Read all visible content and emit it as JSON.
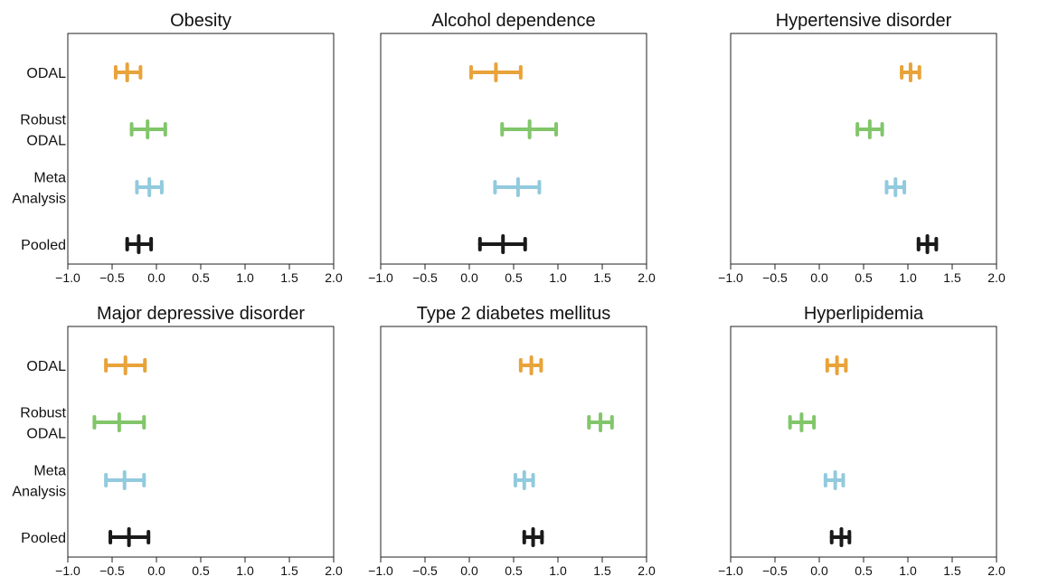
{
  "chart_data": {
    "type": "forest",
    "method_labels": [
      {
        "lines": [
          "ODAL"
        ]
      },
      {
        "lines": [
          "Robust",
          "ODAL"
        ]
      },
      {
        "lines": [
          "Meta",
          "Analysis"
        ]
      },
      {
        "lines": [
          "Pooled"
        ]
      }
    ],
    "method_colors": [
      "#E8A33A",
      "#82C66A",
      "#92CADE",
      "#1A1A1A"
    ],
    "xlim": [
      -1.0,
      2.0
    ],
    "xticks": [
      -1.0,
      -0.5,
      0.0,
      0.5,
      1.0,
      1.5,
      2.0
    ],
    "xtick_labels": [
      "−1.0",
      "−0.5",
      "0.0",
      "0.5",
      "1.0",
      "1.5",
      "2.0"
    ],
    "grid": false,
    "panels": [
      {
        "title": "Obesity",
        "estimates": [
          {
            "method": "ODAL",
            "est": -0.33,
            "lo": -0.46,
            "hi": -0.18
          },
          {
            "method": "Robust ODAL",
            "est": -0.1,
            "lo": -0.28,
            "hi": 0.1
          },
          {
            "method": "Meta Analysis",
            "est": -0.08,
            "lo": -0.22,
            "hi": 0.06
          },
          {
            "method": "Pooled",
            "est": -0.2,
            "lo": -0.33,
            "hi": -0.06
          }
        ]
      },
      {
        "title": "Alcohol dependence",
        "estimates": [
          {
            "method": "ODAL",
            "est": 0.3,
            "lo": 0.02,
            "hi": 0.58
          },
          {
            "method": "Robust ODAL",
            "est": 0.68,
            "lo": 0.37,
            "hi": 0.98
          },
          {
            "method": "Meta Analysis",
            "est": 0.55,
            "lo": 0.29,
            "hi": 0.79
          },
          {
            "method": "Pooled",
            "est": 0.38,
            "lo": 0.12,
            "hi": 0.63
          }
        ]
      },
      {
        "title": "Hypertensive disorder",
        "estimates": [
          {
            "method": "ODAL",
            "est": 1.03,
            "lo": 0.93,
            "hi": 1.13
          },
          {
            "method": "Robust ODAL",
            "est": 0.57,
            "lo": 0.43,
            "hi": 0.71
          },
          {
            "method": "Meta Analysis",
            "est": 0.86,
            "lo": 0.76,
            "hi": 0.96
          },
          {
            "method": "Pooled",
            "est": 1.22,
            "lo": 1.12,
            "hi": 1.32
          }
        ]
      },
      {
        "title": "Major depressive disorder",
        "estimates": [
          {
            "method": "ODAL",
            "est": -0.35,
            "lo": -0.57,
            "hi": -0.13
          },
          {
            "method": "Robust ODAL",
            "est": -0.42,
            "lo": -0.7,
            "hi": -0.14
          },
          {
            "method": "Meta Analysis",
            "est": -0.36,
            "lo": -0.57,
            "hi": -0.14
          },
          {
            "method": "Pooled",
            "est": -0.31,
            "lo": -0.52,
            "hi": -0.09
          }
        ]
      },
      {
        "title": "Type 2 diabetes mellitus",
        "estimates": [
          {
            "method": "ODAL",
            "est": 0.7,
            "lo": 0.58,
            "hi": 0.81
          },
          {
            "method": "Robust ODAL",
            "est": 1.48,
            "lo": 1.35,
            "hi": 1.61
          },
          {
            "method": "Meta Analysis",
            "est": 0.62,
            "lo": 0.52,
            "hi": 0.72
          },
          {
            "method": "Pooled",
            "est": 0.72,
            "lo": 0.62,
            "hi": 0.82
          }
        ]
      },
      {
        "title": "Hyperlipidemia",
        "estimates": [
          {
            "method": "ODAL",
            "est": 0.2,
            "lo": 0.09,
            "hi": 0.3
          },
          {
            "method": "Robust ODAL",
            "est": -0.2,
            "lo": -0.33,
            "hi": -0.06
          },
          {
            "method": "Meta Analysis",
            "est": 0.18,
            "lo": 0.07,
            "hi": 0.27
          },
          {
            "method": "Pooled",
            "est": 0.25,
            "lo": 0.14,
            "hi": 0.34
          }
        ]
      }
    ]
  }
}
